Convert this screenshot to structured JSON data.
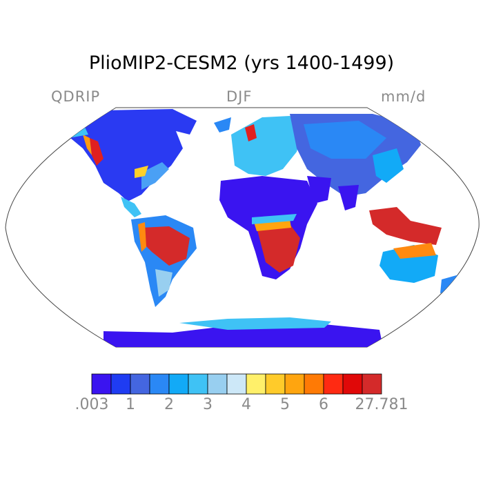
{
  "title": "PlioMIP2-CESM2 (yrs 1400-1499)",
  "variable": "QDRIP",
  "season": "DJF",
  "units": "mm/d",
  "colorbar": {
    "colors": [
      "#3a14f0",
      "#1f3cf2",
      "#4466e0",
      "#2a88f5",
      "#12aaf7",
      "#3fc2f5",
      "#98cff0",
      "#cde8f8",
      "#fff06a",
      "#ffcb2a",
      "#ffa50f",
      "#ff7a05",
      "#ff2a12",
      "#e00808",
      "#d42a2a"
    ],
    "labels": [
      ".003",
      "1",
      "2",
      "3",
      "4",
      "5",
      "6",
      "27.781"
    ]
  }
}
